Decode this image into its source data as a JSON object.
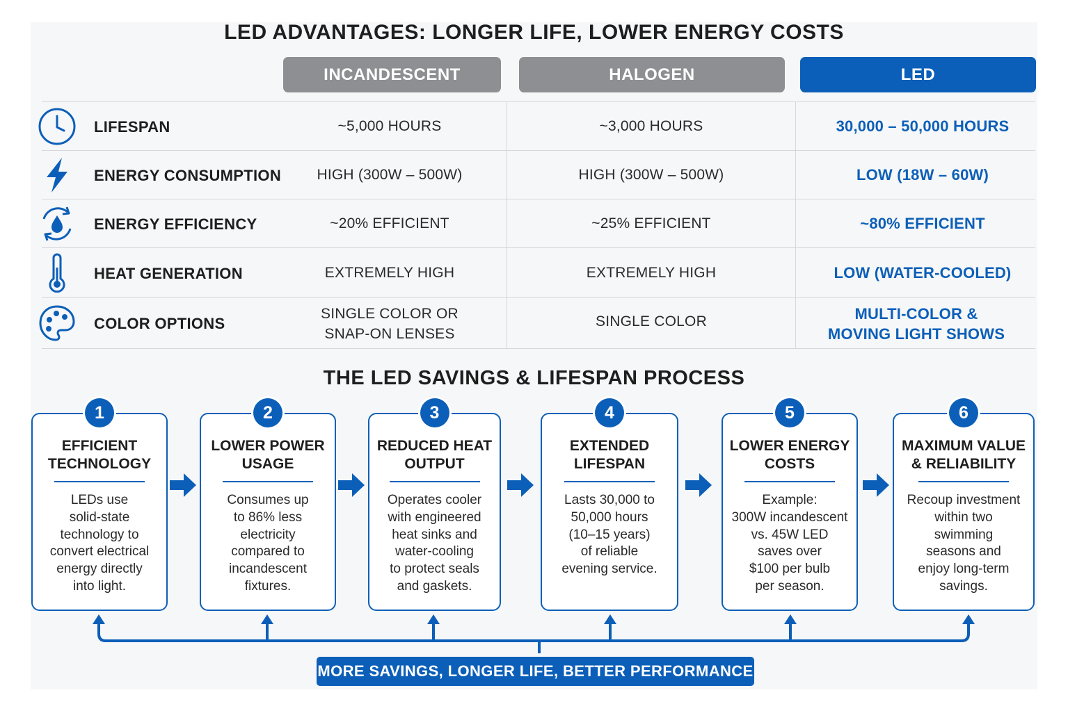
{
  "title": "LED ADVANTAGES: LONGER LIFE, LOWER ENERGY COSTS",
  "colors": {
    "accent_blue": "#0c5fb8",
    "header_gray": "#8e8f92",
    "text": "#1e1e1e"
  },
  "comparison": {
    "columns": [
      "INCANDESCENT",
      "HALOGEN",
      "LED"
    ],
    "rows": [
      {
        "icon": "clock-icon",
        "label": "LIFESPAN",
        "values": [
          "~5,000 HOURS",
          "~3,000 HOURS",
          "30,000 – 50,000 HOURS"
        ]
      },
      {
        "icon": "lightning-bolt-icon",
        "label": "ENERGY CONSUMPTION",
        "values": [
          "HIGH (300W – 500W)",
          "HIGH (300W – 500W)",
          "LOW (18W – 60W)"
        ]
      },
      {
        "icon": "efficiency-cycle-icon",
        "label": "ENERGY EFFICIENCY",
        "values": [
          "~20% EFFICIENT",
          "~25% EFFICIENT",
          "~80% EFFICIENT"
        ]
      },
      {
        "icon": "thermometer-icon",
        "label": "HEAT GENERATION",
        "values": [
          "EXTREMELY HIGH",
          "EXTREMELY HIGH",
          "LOW (WATER-COOLED)"
        ]
      },
      {
        "icon": "palette-icon",
        "label": "COLOR OPTIONS",
        "values": [
          [
            "SINGLE COLOR OR",
            "SNAP-ON LENSES"
          ],
          [
            "SINGLE COLOR"
          ],
          [
            "MULTI-COLOR &",
            "MOVING LIGHT SHOWS"
          ]
        ]
      }
    ]
  },
  "process": {
    "title": "THE LED SAVINGS & LIFESPAN PROCESS",
    "steps": [
      {
        "number": "1",
        "title": [
          "EFFICIENT",
          "TECHNOLOGY"
        ],
        "body": [
          "LEDs use",
          "solid-state",
          "technology to",
          "convert electrical",
          "energy directly",
          "into light."
        ]
      },
      {
        "number": "2",
        "title": [
          "LOWER POWER",
          "USAGE"
        ],
        "body": [
          "Consumes up",
          "to 86% less",
          "electricity",
          "compared to",
          "incandescent",
          "fixtures."
        ]
      },
      {
        "number": "3",
        "title": [
          "REDUCED HEAT",
          "OUTPUT"
        ],
        "body": [
          "Operates cooler",
          "with engineered",
          "heat sinks and",
          "water-cooling",
          "to protect seals",
          "and gaskets."
        ]
      },
      {
        "number": "4",
        "title": [
          "EXTENDED",
          "LIFESPAN"
        ],
        "body": [
          "Lasts 30,000 to",
          "50,000 hours",
          "(10–15 years)",
          "of reliable",
          "evening service."
        ]
      },
      {
        "number": "5",
        "title": [
          "LOWER ENERGY",
          "COSTS"
        ],
        "body": [
          "Example:",
          "300W incandescent",
          "vs. 45W LED",
          "saves over",
          "$100 per bulb",
          "per season."
        ]
      },
      {
        "number": "6",
        "title": [
          "MAXIMUM VALUE",
          "& RELIABILITY"
        ],
        "body": [
          "Recoup investment",
          "within two",
          "swimming",
          "seasons and",
          "enjoy long-term",
          "savings."
        ]
      }
    ],
    "banner": "MORE SAVINGS, LONGER LIFE, BETTER PERFORMANCE"
  }
}
